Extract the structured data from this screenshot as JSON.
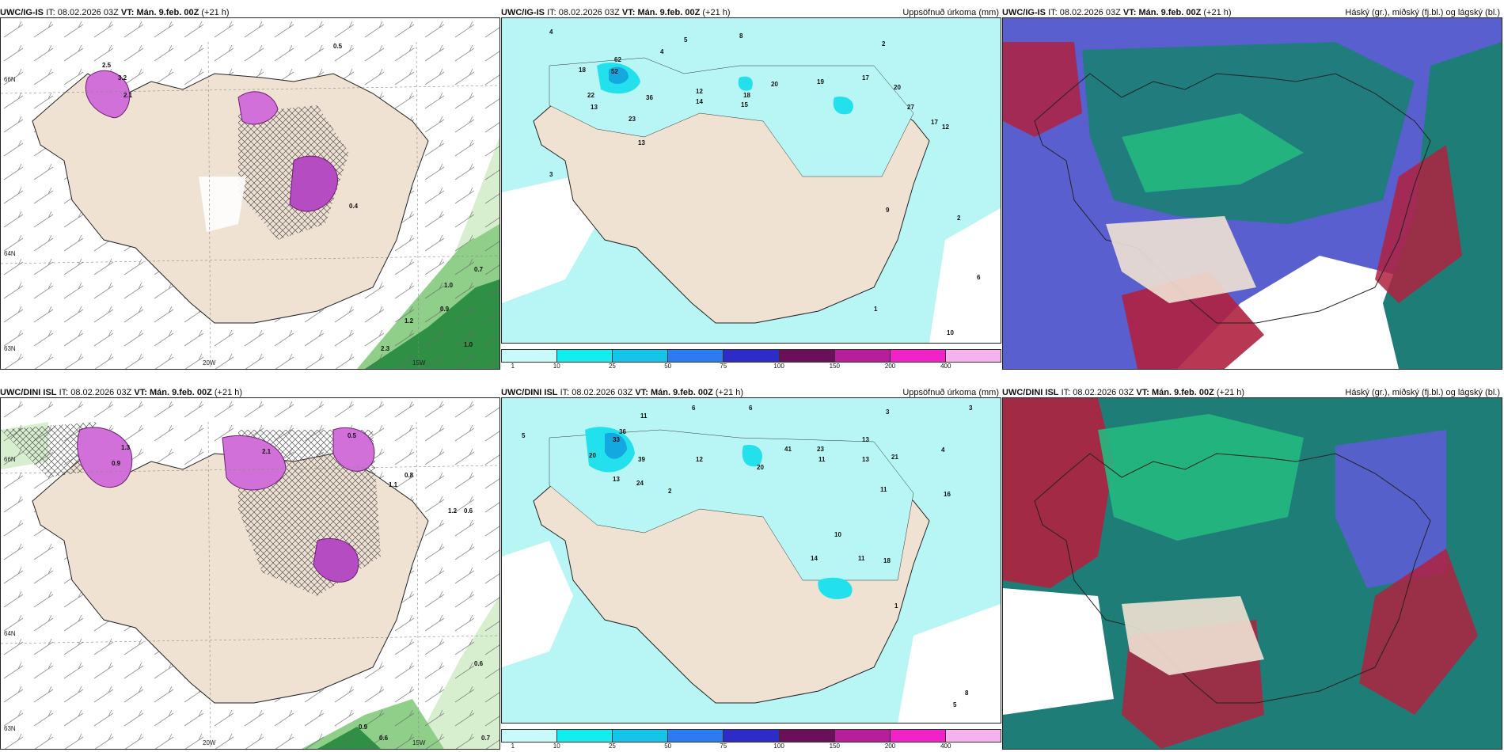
{
  "panels": [
    {
      "id": "igis-snow",
      "model": "UWC/IG-IS",
      "it_label": "IT:",
      "it_value": "08.02.2026 03Z",
      "vt_label": "VT:",
      "vt_value": "Mán. 9.feb. 00Z",
      "lead": "(+21 h)",
      "right_title": "",
      "lat_labels": [
        "66N",
        "64N",
        "63N"
      ],
      "lon_labels": [
        "20W",
        "15W"
      ],
      "values": [
        "0.5",
        "0.7",
        "1.0",
        "0.9",
        "1.2",
        "2.3",
        "1.0",
        "2.5",
        "3.2",
        "2.1",
        "0.4"
      ]
    },
    {
      "id": "igis-precip",
      "model": "UWC/IG-IS",
      "it_label": "IT:",
      "it_value": "08.02.2026 03Z",
      "vt_label": "VT:",
      "vt_value": "Mán. 9.feb. 00Z",
      "lead": "(+21 h)",
      "right_title": "Uppsöfnuð úrkoma (mm)",
      "values": [
        "4",
        "5",
        "4",
        "8",
        "2",
        "18",
        "52",
        "62",
        "13",
        "22",
        "36",
        "23",
        "12",
        "14",
        "18",
        "15",
        "20",
        "19",
        "17",
        "20",
        "27",
        "12",
        "17",
        "13",
        "2",
        "3",
        "1",
        "6",
        "10",
        "9"
      ],
      "legend_ticks": [
        "1",
        "10",
        "25",
        "50",
        "75",
        "100",
        "150",
        "200",
        "400"
      ]
    },
    {
      "id": "igis-cloud",
      "model": "UWC/IG-IS",
      "it_label": "IT:",
      "it_value": "08.02.2026 03Z",
      "vt_label": "VT:",
      "vt_value": "Mán. 9.feb. 00Z",
      "lead": "(+21 h)",
      "right_title": "Háský (gr.), miðský (fj.bl.) og lágský (bl.)"
    },
    {
      "id": "dini-snow",
      "model": "UWC/DINI ISL",
      "it_label": "IT:",
      "it_value": "08.02.2026 03Z",
      "vt_label": "VT:",
      "vt_value": "Mán. 9.feb. 00Z",
      "lead": "(+21 h)",
      "right_title": "",
      "lat_labels": [
        "66N",
        "64N",
        "63N"
      ],
      "lon_labels": [
        "20W",
        "15W"
      ],
      "values": [
        "0.5",
        "0.8",
        "1.1",
        "1.2",
        "0.6",
        "0.6",
        "0.9",
        "0.6",
        "0.7",
        "1.3",
        "0.9",
        "2.1"
      ]
    },
    {
      "id": "dini-precip",
      "model": "UWC/DINI ISL",
      "it_label": "IT:",
      "it_value": "08.02.2026 03Z",
      "vt_label": "VT:",
      "vt_value": "Mán. 9.feb. 00Z",
      "lead": "(+21 h)",
      "right_title": "Uppsöfnuð úrkoma (mm)",
      "values": [
        "11",
        "6",
        "6",
        "5",
        "2",
        "3",
        "4",
        "3",
        "33",
        "36",
        "39",
        "20",
        "13",
        "24",
        "12",
        "20",
        "41",
        "23",
        "11",
        "13",
        "13",
        "21",
        "16",
        "11",
        "10",
        "14",
        "11",
        "18",
        "1",
        "8",
        "5"
      ],
      "legend_ticks": [
        "1",
        "10",
        "25",
        "50",
        "75",
        "100",
        "150",
        "200",
        "400"
      ]
    },
    {
      "id": "dini-cloud",
      "model": "UWC/DINI ISL",
      "it_label": "IT:",
      "it_value": "08.02.2026 03Z",
      "vt_label": "VT:",
      "vt_value": "Mán. 9.feb. 00Z",
      "lead": "(+21 h)",
      "right_title": "Háský (gr.), miðský (fj.bl.) og lágský (bl.)"
    }
  ],
  "colors": {
    "land": "#efe2d3",
    "sea": "#ffffff",
    "precip_light": "#b8f6f6",
    "precip_mid": "#22e0ec",
    "snow_magenta": "#d070d8",
    "green_light": "#d7efcf",
    "green_dark": "#1c7a36",
    "cloud_teal": "#1f7d78",
    "cloud_green": "#23b980",
    "cloud_blue": "#5a5fd0",
    "cloud_red": "#b0213f"
  },
  "legend_colors": [
    "#c8fafa",
    "#12eef0",
    "#14c4ea",
    "#2a7cf0",
    "#2e2cc8",
    "#6c0f5a",
    "#b61e9c",
    "#f022c8",
    "#f6b2ee"
  ]
}
